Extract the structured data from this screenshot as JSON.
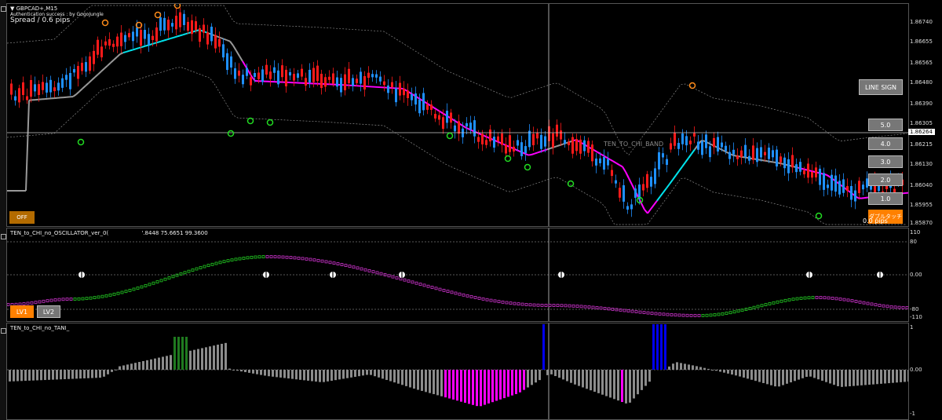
{
  "main_chart": {
    "symbol_label": "GBPCAD+,M15",
    "sub_label": "Authentication success : by GogoJungle",
    "spread_label": "Spread / 0.6 pips",
    "price_axis": [
      "1.86740",
      "1.86655",
      "1.86565",
      "1.86480",
      "1.86390",
      "1.86305",
      "1.86215",
      "1.86130",
      "1.86040",
      "1.85955",
      "1.85870"
    ],
    "current_price": "1.86264",
    "line_sign_button": "LINE SIGN",
    "level_buttons": [
      "5.0",
      "4.0",
      "3.0",
      "2.0",
      "1.0"
    ],
    "bottom_right_label": "0.0 pips",
    "orange_jp_button": "ダブルタッチ",
    "off_button": "OFF",
    "overlay_text": "TEN_TO_CHI_BAND"
  },
  "oscillator": {
    "label": "TEN_to_CHI_no_OSCILLATOR_ver_0(",
    "values_label": "'.8448 75.6651 99.3600",
    "axis": [
      "110",
      "80",
      "0.00",
      "-80",
      "-110"
    ],
    "buttons": [
      "LV1",
      "LV2"
    ]
  },
  "histogram": {
    "label": "TEN_to_CHI_no_TANI_",
    "axis": [
      "1",
      "0.00",
      "-1"
    ]
  },
  "colors": {
    "bull": "#1e90ff",
    "bear": "#ff1a1a",
    "ma_up": "#00e5ee",
    "ma_down": "#ff00ff",
    "ma_flat": "#999999",
    "osc_up": "#22cc22",
    "osc_down": "#cc33cc",
    "hist_grey": "#8c8c8c",
    "hist_green": "#1f7a1f",
    "hist_magenta": "#ff00ff",
    "hist_blue": "#0000ee"
  }
}
